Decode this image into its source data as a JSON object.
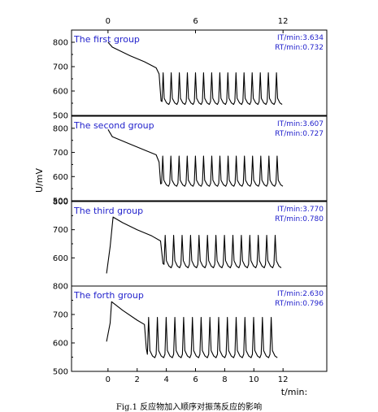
{
  "chart_data": {
    "type": "line",
    "xlabel": "t/min:",
    "ylabel": "U/mV",
    "top_axis_ticks": [
      "0",
      "6",
      "12"
    ],
    "bottom_axis_ticks": [
      "0",
      "2",
      "4",
      "6",
      "8",
      "10",
      "12"
    ],
    "xlim": [
      -2.5,
      15
    ],
    "caption": "Fig.1 反应物加入顺序对振荡反应的影响",
    "panels": [
      {
        "name": "The first group",
        "it": "IT/min:3.634",
        "rt": "RT/min:0.732",
        "ylim": [
          500,
          850
        ],
        "yticks": [
          "500",
          "600",
          "700",
          "800"
        ],
        "baseline": [
          [
            0.0,
            800
          ],
          [
            0.3,
            780
          ],
          [
            1.5,
            745
          ],
          [
            2.5,
            720
          ],
          [
            3.3,
            695
          ],
          [
            3.5,
            670
          ],
          [
            3.634,
            560
          ]
        ],
        "osc_start": 3.634,
        "period": 0.555,
        "osc_end": 11.7,
        "peak": 675,
        "trough": 545
      },
      {
        "name": "The second group",
        "it": "IT/min:3.607",
        "rt": "RT/min:0.727",
        "ylim": [
          500,
          850
        ],
        "yticks": [
          "500",
          "600",
          "700",
          "800"
        ],
        "baseline": [
          [
            0.0,
            795
          ],
          [
            0.3,
            765
          ],
          [
            1.5,
            735
          ],
          [
            2.5,
            710
          ],
          [
            3.3,
            690
          ],
          [
            3.5,
            660
          ],
          [
            3.607,
            570
          ]
        ],
        "osc_start": 3.607,
        "period": 0.56,
        "osc_end": 12.0,
        "peak": 685,
        "trough": 560
      },
      {
        "name": "The third group",
        "it": "IT/min:3.770",
        "rt": "RT/min:0.780",
        "ylim": [
          500,
          800
        ],
        "yticks": [
          "600",
          "700",
          "800"
        ],
        "baseline": [
          [
            -0.1,
            545
          ],
          [
            0.15,
            640
          ],
          [
            0.35,
            745
          ],
          [
            1.0,
            725
          ],
          [
            2.0,
            700
          ],
          [
            3.0,
            678
          ],
          [
            3.6,
            660
          ],
          [
            3.77,
            580
          ]
        ],
        "osc_start": 3.77,
        "period": 0.58,
        "osc_end": 12.0,
        "peak": 680,
        "trough": 565
      },
      {
        "name": "The forth group",
        "it": "IT/min:2.630",
        "rt": "RT/min:0.796",
        "ylim": [
          500,
          800
        ],
        "yticks": [
          "500",
          "600",
          "700",
          "800"
        ],
        "baseline": [
          [
            -0.1,
            605
          ],
          [
            0.15,
            670
          ],
          [
            0.25,
            745
          ],
          [
            1.0,
            715
          ],
          [
            2.0,
            680
          ],
          [
            2.5,
            665
          ],
          [
            2.63,
            580
          ]
        ],
        "osc_start": 2.63,
        "period": 0.6,
        "osc_end": 11.7,
        "peak": 690,
        "trough": 548
      }
    ]
  }
}
